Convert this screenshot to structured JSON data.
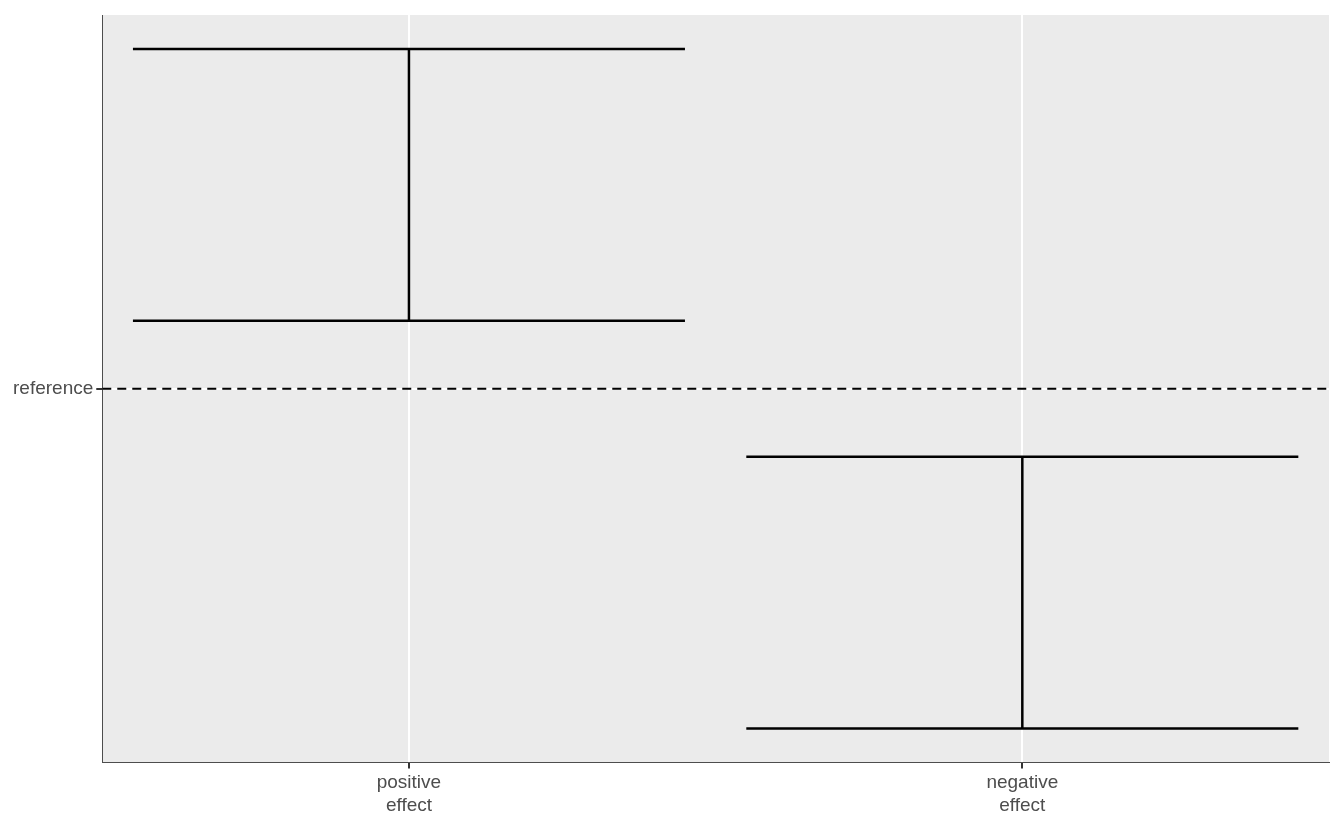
{
  "chart_data": {
    "type": "errorbar",
    "categories": [
      "positive\neffect",
      "negative\neffect"
    ],
    "lower": [
      1,
      -5
    ],
    "upper": [
      5,
      -1
    ],
    "color": "#000000",
    "ylim": [
      -5.5,
      5.5
    ],
    "yticks": [
      {
        "value": 0,
        "label": "reference"
      }
    ],
    "hline": {
      "value": 0,
      "line_style": "dashed"
    },
    "grid": true
  }
}
